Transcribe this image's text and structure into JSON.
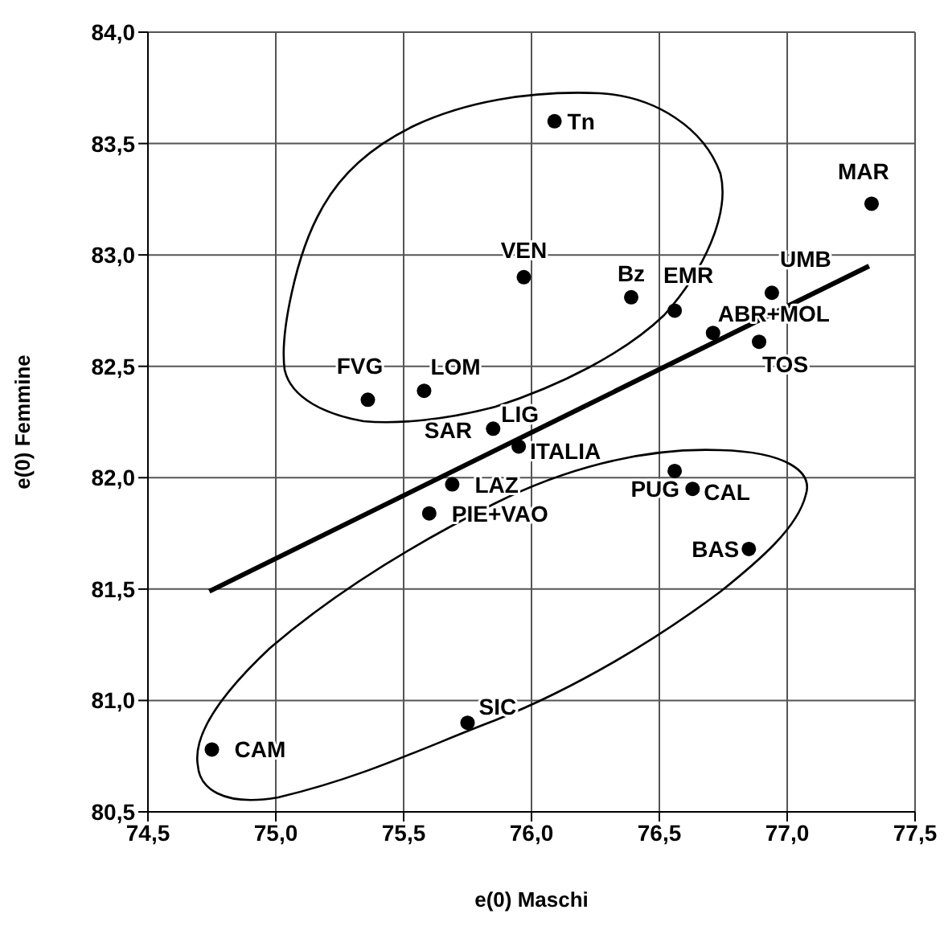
{
  "chart_data": {
    "type": "scatter",
    "xlabel": "e(0) Maschi",
    "ylabel": "e(0) Femmine",
    "xlim": [
      74.5,
      77.5
    ],
    "ylim": [
      80.5,
      84.0
    ],
    "xticks": [
      {
        "value": 74.5,
        "label": "74,5"
      },
      {
        "value": 75,
        "label": "75,0"
      },
      {
        "value": 75.5,
        "label": "75,5"
      },
      {
        "value": 76,
        "label": "76,0"
      },
      {
        "value": 76.5,
        "label": "76,5"
      },
      {
        "value": 77,
        "label": "77,0"
      },
      {
        "value": 77.5,
        "label": "77,5"
      }
    ],
    "yticks": [
      {
        "value": 80.5,
        "label": "80,5"
      },
      {
        "value": 81,
        "label": "81,0"
      },
      {
        "value": 81.5,
        "label": "81,5"
      },
      {
        "value": 82,
        "label": "82,0"
      },
      {
        "value": 82.5,
        "label": "82,5"
      },
      {
        "value": 83,
        "label": "83,0"
      },
      {
        "value": 83.5,
        "label": "83,5"
      },
      {
        "value": 84,
        "label": "84,0"
      }
    ],
    "grid": true,
    "line_style": "solid",
    "series": [
      {
        "marker": "circle",
        "color": "#000000",
        "x": [
          76.09,
          77.33,
          75.97,
          76.39,
          76.56,
          76.94,
          76.71,
          76.89,
          75.36,
          75.58,
          75.83,
          75.85,
          75.95,
          75.69,
          75.6,
          76.56,
          76.63,
          76.85,
          75.75,
          74.75
        ],
        "values": [
          83.6,
          83.23,
          82.9,
          82.81,
          82.75,
          82.83,
          82.65,
          82.61,
          82.35,
          82.39,
          null,
          82.22,
          82.14,
          81.97,
          81.84,
          82.03,
          81.95,
          81.68,
          80.9,
          80.78
        ]
      },
      {
        "type": "line",
        "color": "#000000",
        "x": [
          74.74,
          77.32
        ],
        "values": [
          81.49,
          82.95
        ]
      }
    ],
    "annotations": [
      {
        "text": "Tn",
        "x": 76.09,
        "y": 83.6
      },
      {
        "text": "MAR",
        "x": 77.33,
        "y": 83.23
      },
      {
        "text": "VEN",
        "x": 75.97,
        "y": 82.9
      },
      {
        "text": "Bz",
        "x": 76.39,
        "y": 82.81
      },
      {
        "text": "EMR",
        "x": 76.56,
        "y": 82.75
      },
      {
        "text": "UMB",
        "x": 76.94,
        "y": 82.83
      },
      {
        "text": "ABR+MOL",
        "x": 76.71,
        "y": 82.65
      },
      {
        "text": "TOS",
        "x": 76.89,
        "y": 82.61
      },
      {
        "text": "FVG",
        "x": 75.36,
        "y": 82.35
      },
      {
        "text": "LOM",
        "x": 75.58,
        "y": 82.39
      },
      {
        "text": "SAR",
        "x": 75.83,
        "y": 82.23
      },
      {
        "text": "LIG",
        "x": 75.85,
        "y": 82.22
      },
      {
        "text": "ITALIA",
        "x": 75.95,
        "y": 82.14
      },
      {
        "text": "LAZ",
        "x": 75.69,
        "y": 81.97
      },
      {
        "text": "PIE+VAO",
        "x": 75.6,
        "y": 81.84
      },
      {
        "text": "PUG",
        "x": 76.56,
        "y": 82.03
      },
      {
        "text": "CAL",
        "x": 76.63,
        "y": 81.95
      },
      {
        "text": "BAS",
        "x": 76.85,
        "y": 81.68
      },
      {
        "text": "SIC",
        "x": 75.75,
        "y": 80.9
      },
      {
        "text": "CAM",
        "x": 74.75,
        "y": 80.78
      }
    ]
  }
}
